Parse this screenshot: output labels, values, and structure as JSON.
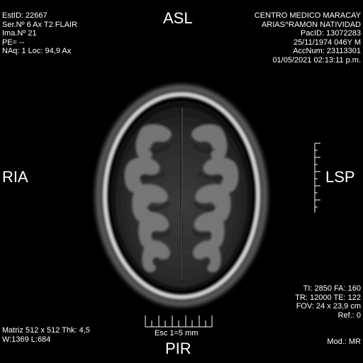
{
  "header_left": {
    "study_id": "EstID: 22667",
    "series": "Ser.Nº 6  Ax T2 FLAIR",
    "image_number": "Ima.Nº 21",
    "phase_encode": "PE= --",
    "acquisition": "NAq: 1 Loc: 94,9 Ax"
  },
  "header_right": {
    "institution": "CENTRO MEDICO MARACAY",
    "patient_name": "ARIAS^RAMON NATIVIDAD",
    "patient_id": "PacID: 13072283",
    "birth_info": "25/11/1974 046Y M",
    "accession": "AccNum: 23113301",
    "datetime": "01/05/2021 02:13:11 p.m."
  },
  "orientation": {
    "top": "ASL",
    "bottom": "PIR",
    "left": "RIA",
    "right": "LSP"
  },
  "scale": {
    "label": "Esc 1=5 mm"
  },
  "footer_left": {
    "matrix": "Matriz 512 x 512 Thk: 4,5",
    "window": "W:1369 L:684"
  },
  "footer_right": {
    "ti_fa": "TI: 2850 FA: 160",
    "tr_te": "TR: 12000 TE: 122",
    "fov": "FOV: 24 x 23,9 cm",
    "ref": "Ref.: 0",
    "modality": "Mod.: MR"
  }
}
